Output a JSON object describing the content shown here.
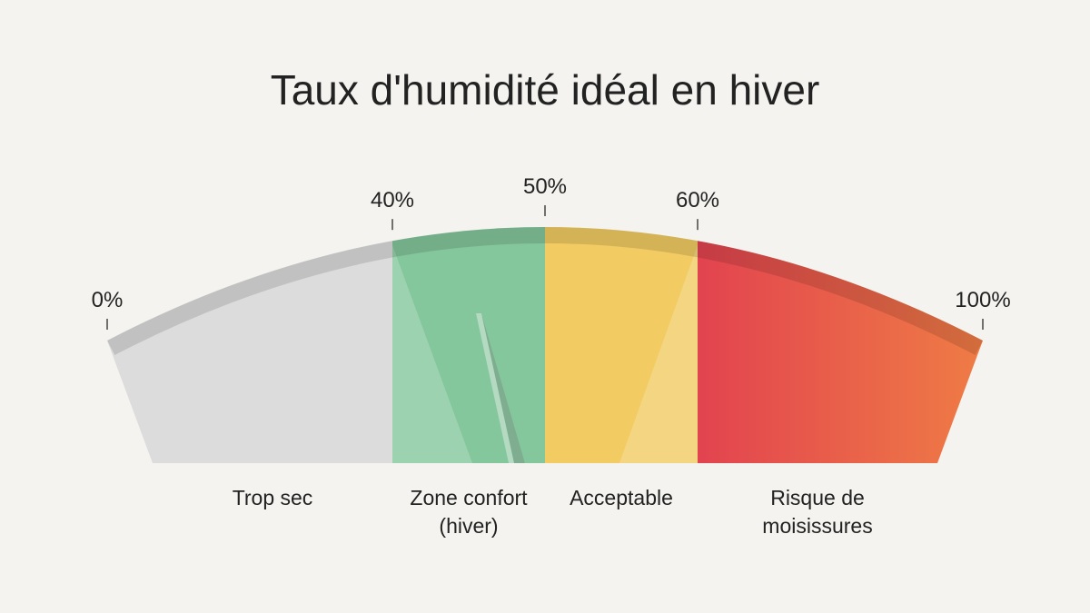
{
  "chart_data": {
    "type": "gauge",
    "title": "Taux d'humidité idéal en hiver",
    "ticks": [
      {
        "value": 0,
        "label": "0%"
      },
      {
        "value": 40,
        "label": "40%"
      },
      {
        "value": 50,
        "label": "50%"
      },
      {
        "value": 60,
        "label": "60%"
      },
      {
        "value": 100,
        "label": "100%"
      }
    ],
    "zones": [
      {
        "name": "Trop sec",
        "from": 0,
        "to": 40,
        "color": "#dcdcdc"
      },
      {
        "name": "Zone confort (hiver)",
        "from": 40,
        "to": 50,
        "color": "#84c79c"
      },
      {
        "name": "Acceptable",
        "from": 50,
        "to": 60,
        "color": "#f2cc63"
      },
      {
        "name": "Risque de moisissures",
        "from": 60,
        "to": 100,
        "color": "#e6484f"
      }
    ]
  }
}
